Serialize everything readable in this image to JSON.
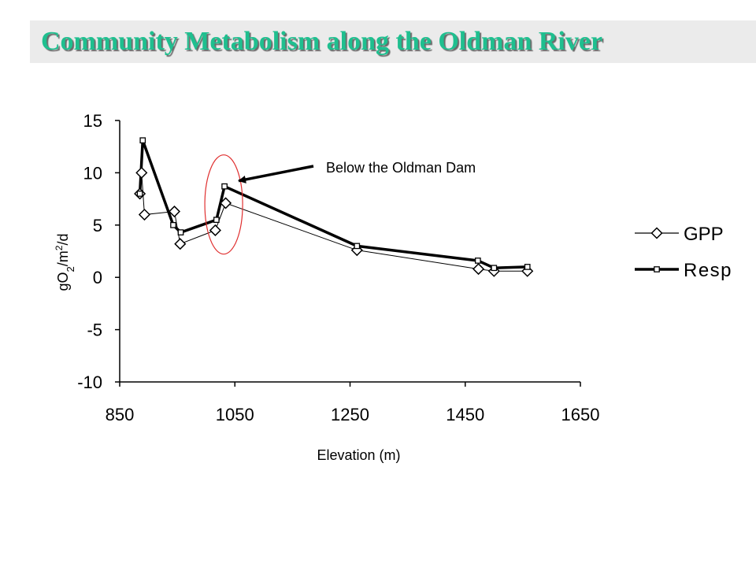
{
  "title": "Community Metabolism along the Oldman River",
  "chart_data": {
    "type": "line",
    "title": "Community Metabolism along the Oldman River",
    "xlabel": "Elevation (m)",
    "ylabel": "gO2/m2/d",
    "xlim": [
      850,
      1650
    ],
    "ylim": [
      -10,
      15
    ],
    "xticks": [
      850,
      1050,
      1250,
      1450,
      1650
    ],
    "yticks": [
      15,
      10,
      5,
      0,
      -5,
      -10
    ],
    "grid": false,
    "legend_position": "right",
    "series": [
      {
        "name": "GPP",
        "marker": "diamond",
        "line": "thin",
        "x": [
          885,
          888,
          893,
          945,
          955,
          1016,
          1034,
          1262,
          1473,
          1500,
          1558
        ],
        "y": [
          8.0,
          10.0,
          6.0,
          6.3,
          3.2,
          4.5,
          7.1,
          2.6,
          0.8,
          0.6,
          0.6
        ]
      },
      {
        "name": "Resp",
        "marker": "square",
        "line": "thick",
        "x": [
          885,
          890,
          943,
          956,
          1018,
          1032,
          1262,
          1472,
          1500,
          1558
        ],
        "y": [
          8.0,
          13.1,
          5.0,
          4.3,
          5.5,
          8.7,
          3.0,
          1.6,
          0.9,
          1.0
        ]
      }
    ],
    "annotations": [
      {
        "text": "Below the Oldman Dam",
        "target_x": 1032,
        "target_y": 8.7
      }
    ]
  },
  "colors": {
    "title_text": "#1fbf8f",
    "title_bar": "#ebebeb",
    "ellipse": "#e03030",
    "lines": "#000000"
  }
}
